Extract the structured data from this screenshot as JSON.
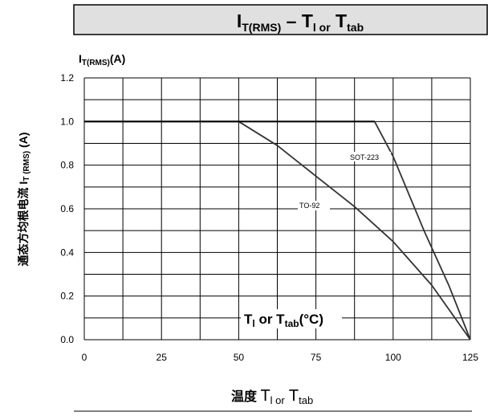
{
  "title": {
    "i": "I",
    "i_sub": "T(RMS)",
    "dash": " – ",
    "t1": "T",
    "t1_sub": "l or",
    "t2": " T",
    "t2_sub": "tab"
  },
  "y_axis_unit_label": {
    "i": "I",
    "i_sub": "T(RMS)",
    "unit": "(A)"
  },
  "y_axis_side_label": {
    "cn": "通态方均根电流",
    "i": " I",
    "sub": "T (RMS)",
    "unit": " (A)"
  },
  "x_axis_label": {
    "cn": "温度 ",
    "t1": "T",
    "t1_sub": "l or",
    "t2": " T",
    "t2_sub": "tab"
  },
  "annotation": {
    "t1": "T",
    "t1_sub": "l",
    "mid": " or T",
    "t2_sub": "tab",
    "unit": "(°C)"
  },
  "chart_data": {
    "type": "line",
    "title": "IT(RMS) – Tl or Ttab",
    "xlabel": "温度 Tl or Ttab",
    "ylabel": "通态方均根电流 IT (RMS) (A)",
    "x_ticks": [
      "0",
      "25",
      "50",
      "75",
      "100",
      "125"
    ],
    "y_ticks": [
      "0.0",
      "0.2",
      "0.4",
      "0.6",
      "0.8",
      "1.0",
      "1.2"
    ],
    "xlim": [
      0,
      125
    ],
    "ylim": [
      0,
      1.2
    ],
    "grid": true,
    "x_grid_step": 12.5,
    "y_grid_step": 0.1,
    "series": [
      {
        "name": "SOT-223",
        "x": [
          0,
          94,
          100,
          110,
          118,
          125
        ],
        "y": [
          1.0,
          1.0,
          0.84,
          0.5,
          0.25,
          0.0
        ]
      },
      {
        "name": "TO-92",
        "x": [
          0,
          50,
          62.5,
          75,
          87.5,
          100,
          112.5,
          125
        ],
        "y": [
          1.0,
          1.0,
          0.89,
          0.75,
          0.61,
          0.45,
          0.25,
          0.0
        ]
      }
    ]
  }
}
